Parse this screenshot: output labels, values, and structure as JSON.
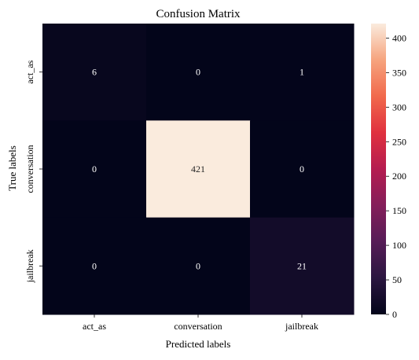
{
  "chart_data": {
    "type": "heatmap",
    "title": "Confusion Matrix",
    "xlabel": "Predicted labels",
    "ylabel": "True labels",
    "x_categories": [
      "act_as",
      "conversation",
      "jailbreak"
    ],
    "y_categories": [
      "act_as",
      "conversation",
      "jailbreak"
    ],
    "values": [
      [
        6,
        0,
        1
      ],
      [
        0,
        421,
        0
      ],
      [
        0,
        0,
        21
      ]
    ],
    "colorbar": {
      "colormap": "rocket",
      "vmin": 0,
      "vmax": 421,
      "ticks": [
        0,
        50,
        100,
        150,
        200,
        250,
        300,
        350,
        400
      ]
    }
  }
}
